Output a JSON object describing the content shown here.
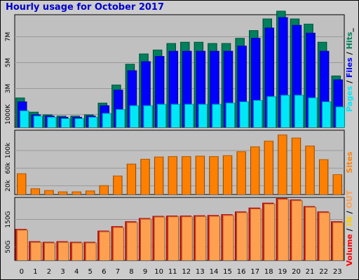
{
  "title": "Hourly usage for October 2017",
  "colors": {
    "hits": "#00805c",
    "files": "#0000ff",
    "pages": "#00e8f8",
    "sites": "#ff8000",
    "volume": "#ff0000",
    "in": "#ffcc00",
    "out": "#ffa050",
    "background": "#c0c0c0"
  },
  "side_labels": {
    "top": [
      {
        "text": "Pages",
        "color": "#00e8f8"
      },
      {
        "text": " / ",
        "color": "#000000"
      },
      {
        "text": "Files",
        "color": "#0000ff"
      },
      {
        "text": " / ",
        "color": "#000000"
      },
      {
        "text": "Hits",
        "color": "#00805c"
      },
      {
        "text": "_",
        "color": "#000000"
      }
    ],
    "middle": [
      {
        "text": "Sites",
        "color": "#ff8000"
      }
    ],
    "bottom": [
      {
        "text": "Volume",
        "color": "#ff0000"
      },
      {
        "text": " / ",
        "color": "#000000"
      },
      {
        "text": "IN",
        "color": "#ffcc00"
      },
      {
        "text": " / ",
        "color": "#000000"
      },
      {
        "text": "OUT",
        "color": "#ffa050"
      }
    ]
  },
  "chart_data": {
    "type": "bar",
    "title": "Hourly usage for October 2017",
    "categories": [
      "0",
      "1",
      "2",
      "3",
      "4",
      "5",
      "6",
      "7",
      "8",
      "9",
      "10",
      "11",
      "12",
      "13",
      "14",
      "15",
      "16",
      "17",
      "18",
      "19",
      "20",
      "21",
      "22",
      "23"
    ],
    "panels": [
      {
        "name": "top",
        "ylim": [
          0,
          8700000
        ],
        "yticks": [
          1000000,
          3000000,
          5000000,
          7000000
        ],
        "ytick_labels": [
          "1000K",
          "3M",
          "5M",
          "7M"
        ],
        "series": [
          {
            "name": "Hits",
            "color": "#00805c",
            "values": [
              2300000,
              1200000,
              1000000,
              900000,
              900000,
              1000000,
              1900000,
              3300000,
              4900000,
              5700000,
              6000000,
              6500000,
              6600000,
              6600000,
              6500000,
              6500000,
              6900000,
              7500000,
              8400000,
              9000000,
              8400000,
              8000000,
              6600000,
              4000000
            ]
          },
          {
            "name": "Files",
            "color": "#0000ff",
            "values": [
              2000000,
              1000000,
              900000,
              800000,
              800000,
              900000,
              1700000,
              2900000,
              4400000,
              5100000,
              5500000,
              5900000,
              5900000,
              5900000,
              5900000,
              5900000,
              6300000,
              6900000,
              7700000,
              8500000,
              7900000,
              7300000,
              5900000,
              3700000
            ]
          },
          {
            "name": "Pages",
            "color": "#00e8f8",
            "values": [
              1300000,
              900000,
              800000,
              700000,
              700000,
              800000,
              1100000,
              1400000,
              1700000,
              1700000,
              1800000,
              1800000,
              1800000,
              1800000,
              1800000,
              1900000,
              2000000,
              2100000,
              2400000,
              2500000,
              2500000,
              2300000,
              2000000,
              1600000
            ]
          }
        ]
      },
      {
        "name": "middle",
        "ylim": [
          0,
          146000
        ],
        "yticks": [
          20000,
          60000,
          100000
        ],
        "ytick_labels": [
          "20k",
          "60k",
          "100k"
        ],
        "series": [
          {
            "name": "Sites",
            "color": "#ff8000",
            "values": [
              48000,
              14000,
              10000,
              7000,
              7000,
              9000,
              21000,
              43000,
              70000,
              81000,
              86000,
              87000,
              87000,
              88000,
              87000,
              89000,
              98000,
              109000,
              122000,
              136000,
              129000,
              111000,
              80000,
              46000
            ]
          }
        ]
      },
      {
        "name": "bottom",
        "ylim": [
          0,
          231000000
        ],
        "yticks": [
          50000000,
          150000000
        ],
        "ytick_labels": [
          "50G",
          "150G"
        ],
        "series": [
          {
            "name": "Volume",
            "color": "#ff0000",
            "values": [
              115000000,
              70000000,
              68000000,
              70000000,
              68000000,
              68000000,
              109000000,
              125000000,
              143000000,
              155000000,
              163000000,
              164000000,
              164000000,
              165000000,
              166000000,
              169000000,
              179000000,
              193000000,
              211000000,
              228000000,
              223000000,
              199000000,
              179000000,
              143000000
            ]
          },
          {
            "name": "OUT",
            "color": "#ffa050",
            "values": [
              112000000,
              67000000,
              65000000,
              67000000,
              65000000,
              65000000,
              106000000,
              122000000,
              140000000,
              152000000,
              160000000,
              161000000,
              161000000,
              162000000,
              163000000,
              166000000,
              176000000,
              190000000,
              208000000,
              225000000,
              220000000,
              196000000,
              176000000,
              140000000
            ]
          }
        ]
      }
    ]
  }
}
